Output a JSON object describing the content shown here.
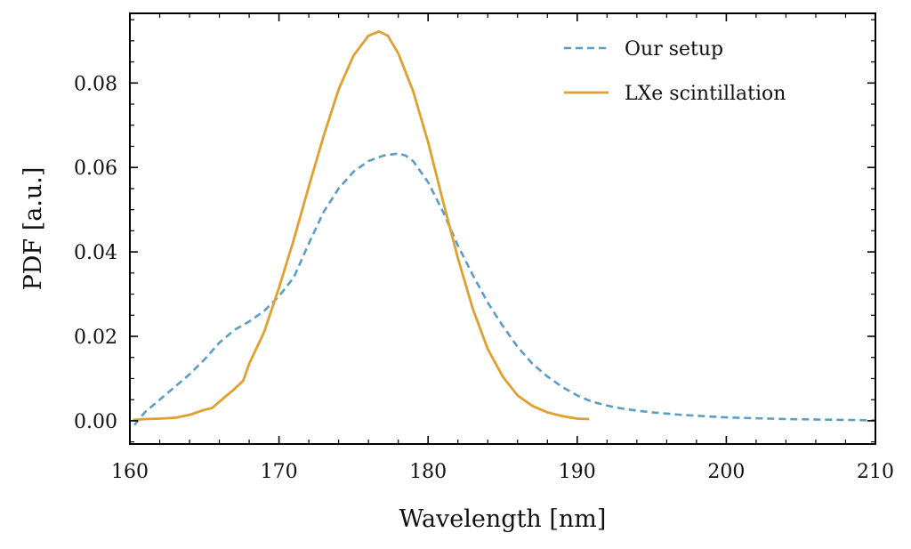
{
  "chart_data": {
    "type": "line",
    "xlabel": "Wavelength [nm]",
    "ylabel": "PDF [a.u.]",
    "xlim": [
      160,
      210
    ],
    "ylim": [
      -0.0055,
      0.0965
    ],
    "xticks": [
      160,
      170,
      180,
      190,
      200,
      210
    ],
    "xtick_labels": [
      "160",
      "170",
      "180",
      "190",
      "200",
      "210"
    ],
    "yticks": [
      0.0,
      0.02,
      0.04,
      0.06,
      0.08
    ],
    "ytick_labels": [
      "0.00",
      "0.02",
      "0.04",
      "0.06",
      "0.08"
    ],
    "grid": false,
    "legend_position": "top-right",
    "series": [
      {
        "name": "Our setup",
        "color": "#5b9dc4",
        "style": "dashed",
        "x": [
          160.3,
          161,
          162,
          163,
          164,
          165,
          166,
          167,
          168,
          169,
          170,
          171,
          172,
          173,
          174,
          175,
          176,
          177,
          178,
          178.5,
          179,
          180,
          181,
          182,
          183,
          184,
          185,
          186,
          187,
          188,
          189,
          190,
          191,
          192,
          193,
          194,
          195,
          196,
          197,
          198,
          199,
          200,
          202,
          204,
          206,
          208,
          210
        ],
        "y": [
          -0.001,
          0.002,
          0.005,
          0.008,
          0.011,
          0.0145,
          0.0185,
          0.0215,
          0.0235,
          0.026,
          0.0295,
          0.034,
          0.042,
          0.0495,
          0.055,
          0.059,
          0.0615,
          0.0628,
          0.0633,
          0.0628,
          0.0615,
          0.0565,
          0.0495,
          0.0415,
          0.0345,
          0.028,
          0.0225,
          0.0175,
          0.0135,
          0.0105,
          0.008,
          0.006,
          0.0045,
          0.0036,
          0.0029,
          0.0024,
          0.002,
          0.0017,
          0.0014,
          0.0012,
          0.001,
          0.0008,
          0.0006,
          0.0004,
          0.0003,
          0.0002,
          0.0001
        ]
      },
      {
        "name": "LXe scintillation",
        "color": "#e0a030",
        "style": "solid",
        "x": [
          160.2,
          161,
          162,
          163,
          164,
          165,
          165.5,
          166,
          167,
          167.6,
          168,
          169,
          170,
          171,
          172,
          173,
          174,
          175,
          176,
          176.7,
          177.3,
          178,
          179,
          180,
          181,
          182,
          183,
          184,
          185,
          186,
          187,
          188,
          189,
          190,
          190.8
        ],
        "y": [
          0.0002,
          0.0004,
          0.0005,
          0.0007,
          0.0014,
          0.0026,
          0.003,
          0.0045,
          0.0075,
          0.0095,
          0.0135,
          0.021,
          0.0315,
          0.043,
          0.0555,
          0.0675,
          0.0785,
          0.0865,
          0.0912,
          0.0922,
          0.0912,
          0.087,
          0.078,
          0.066,
          0.052,
          0.0385,
          0.0265,
          0.017,
          0.0105,
          0.006,
          0.0035,
          0.002,
          0.0011,
          0.0005,
          0.0004
        ]
      }
    ]
  }
}
